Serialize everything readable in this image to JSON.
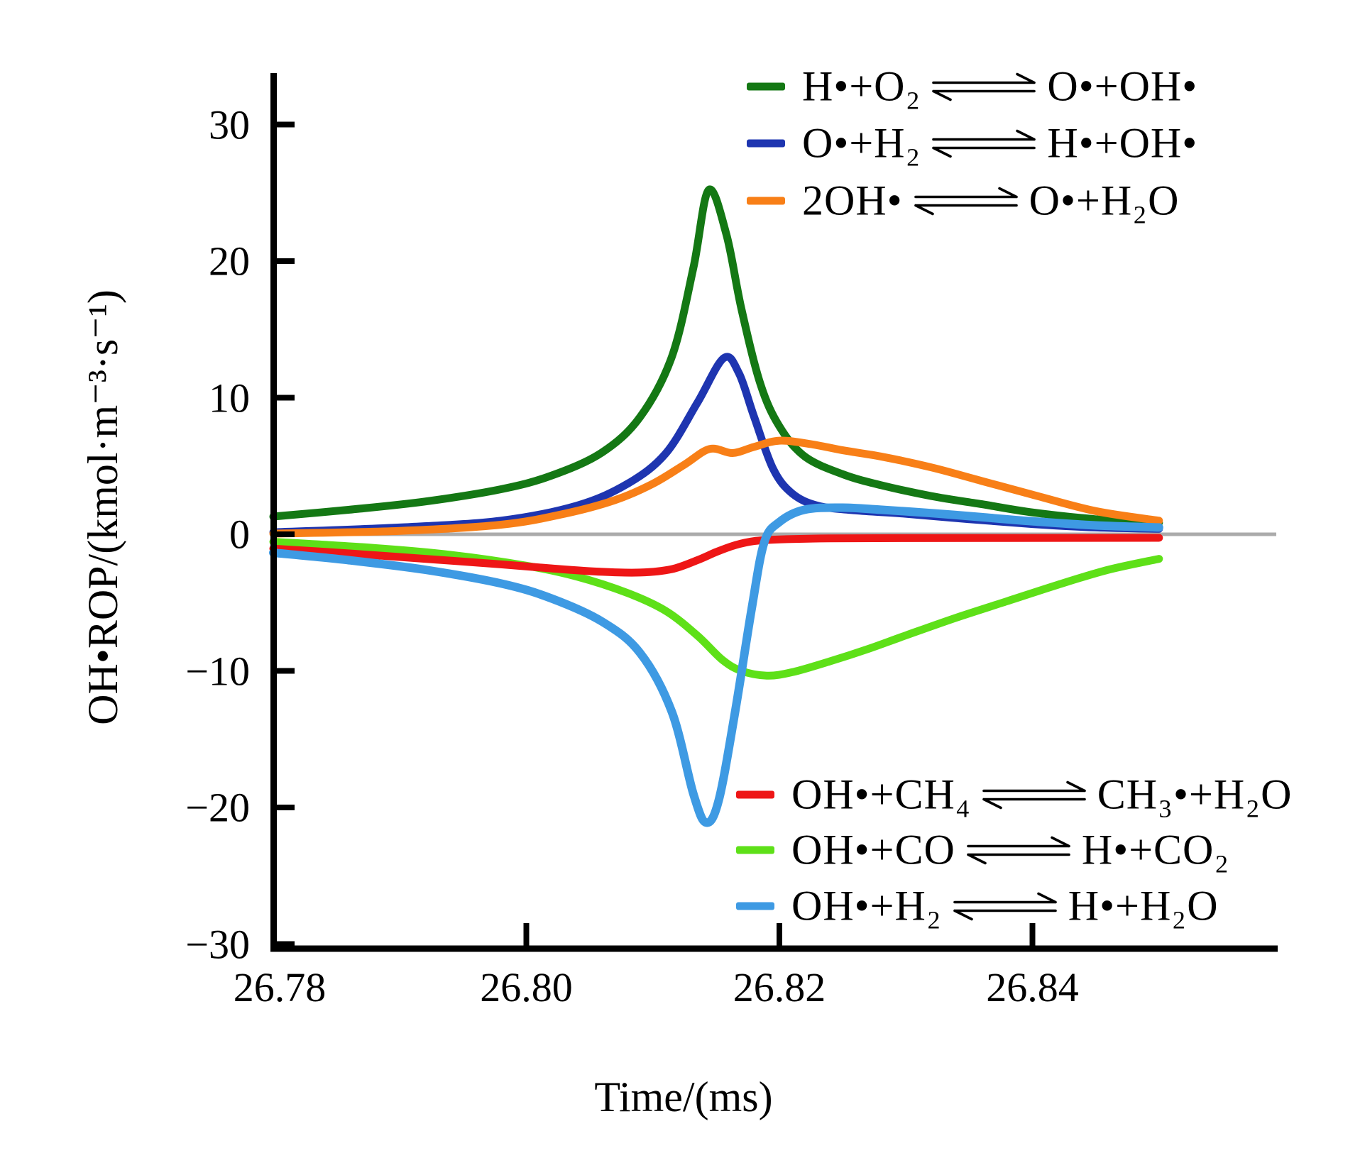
{
  "figure": {
    "background": "#ffffff",
    "axis_color": "#000000",
    "zero_line_color": "#ababab"
  },
  "axes": {
    "x": {
      "title": "Time/(ms)"
    },
    "y": {
      "title": "OH•ROP/(kmol·m⁻³·s⁻¹)"
    }
  },
  "legend_top": [
    {
      "color": "#147814",
      "lhs": "H•+O₂",
      "rhs": "O•+OH•"
    },
    {
      "color": "#1e35b0",
      "lhs": "O•+H₂",
      "rhs": "H•+OH•"
    },
    {
      "color": "#f87f17",
      "lhs": "2OH•",
      "rhs": "O•+H₂O"
    }
  ],
  "legend_bottom": [
    {
      "color": "#ee1616",
      "lhs": "OH•+CH₄",
      "rhs": "CH₃•+H₂O"
    },
    {
      "color": "#5ee018",
      "lhs": "OH•+CO",
      "rhs": "H•+CO₂"
    },
    {
      "color": "#3e9ae3",
      "lhs": "OH•+H₂",
      "rhs": "H•+H₂O"
    }
  ],
  "chart_data": {
    "type": "line",
    "title": "",
    "xlabel": "Time/(ms)",
    "ylabel": "OH•ROP/(kmol·m⁻³·s⁻¹)",
    "xlim": [
      26.78,
      26.8595
    ],
    "ylim": [
      -30.3,
      33.7
    ],
    "grid": false,
    "zero_line": true,
    "legend_position": [
      "upper right inside",
      "lower right inside"
    ],
    "x_ticks": [
      {
        "v": 26.78,
        "label": "26.78",
        "nub": false
      },
      {
        "v": 26.8,
        "label": "26.80",
        "nub": true
      },
      {
        "v": 26.82,
        "label": "26.82",
        "nub": true
      },
      {
        "v": 26.84,
        "label": "26.84",
        "nub": true
      }
    ],
    "y_ticks": [
      {
        "v": 30,
        "label": "30"
      },
      {
        "v": 20,
        "label": "20"
      },
      {
        "v": 10,
        "label": "10"
      },
      {
        "v": 0,
        "label": "0"
      },
      {
        "v": -10,
        "label": "−10"
      },
      {
        "v": -20,
        "label": "−20"
      },
      {
        "v": -30,
        "label": "−30"
      }
    ],
    "series": [
      {
        "id": "h-o2",
        "name": "H•+O₂ ⇌ O•+OH•",
        "color": "#147814",
        "width": 11,
        "points": [
          [
            26.78,
            1.3
          ],
          [
            26.786,
            1.8
          ],
          [
            26.792,
            2.4
          ],
          [
            26.798,
            3.3
          ],
          [
            26.802,
            4.3
          ],
          [
            26.806,
            6.0
          ],
          [
            26.809,
            8.6
          ],
          [
            26.8115,
            13.0
          ],
          [
            26.8132,
            19.5
          ],
          [
            26.8144,
            25.2
          ],
          [
            26.8158,
            22.0
          ],
          [
            26.817,
            16.5
          ],
          [
            26.8185,
            11.0
          ],
          [
            26.82,
            7.9
          ],
          [
            26.822,
            5.7
          ],
          [
            26.825,
            4.4
          ],
          [
            26.828,
            3.6
          ],
          [
            26.832,
            2.8
          ],
          [
            26.836,
            2.2
          ],
          [
            26.84,
            1.6
          ],
          [
            26.845,
            1.1
          ],
          [
            26.85,
            0.85
          ]
        ]
      },
      {
        "id": "o-h2",
        "name": "O•+H₂ ⇌ H•+OH•",
        "color": "#1e35b0",
        "width": 11,
        "points": [
          [
            26.78,
            0.15
          ],
          [
            26.79,
            0.5
          ],
          [
            26.798,
            1.0
          ],
          [
            26.804,
            2.1
          ],
          [
            26.808,
            3.7
          ],
          [
            26.811,
            5.9
          ],
          [
            26.8135,
            9.6
          ],
          [
            26.8156,
            12.9
          ],
          [
            26.8168,
            11.8
          ],
          [
            26.818,
            8.6
          ],
          [
            26.8195,
            4.8
          ],
          [
            26.821,
            3.0
          ],
          [
            26.823,
            2.1
          ],
          [
            26.826,
            1.75
          ],
          [
            26.83,
            1.5
          ],
          [
            26.835,
            1.1
          ],
          [
            26.84,
            0.75
          ],
          [
            26.845,
            0.5
          ],
          [
            26.85,
            0.4
          ]
        ]
      },
      {
        "id": "2oh",
        "name": "2OH• ⇌ O•+H₂O",
        "color": "#f87f17",
        "width": 11,
        "points": [
          [
            26.78,
            0.05
          ],
          [
            26.79,
            0.25
          ],
          [
            26.798,
            0.7
          ],
          [
            26.803,
            1.5
          ],
          [
            26.807,
            2.5
          ],
          [
            26.81,
            3.7
          ],
          [
            26.8125,
            5.1
          ],
          [
            26.8145,
            6.25
          ],
          [
            26.8163,
            5.95
          ],
          [
            26.818,
            6.4
          ],
          [
            26.82,
            6.85
          ],
          [
            26.8225,
            6.6
          ],
          [
            26.825,
            6.15
          ],
          [
            26.828,
            5.7
          ],
          [
            26.832,
            4.9
          ],
          [
            26.836,
            3.9
          ],
          [
            26.84,
            2.9
          ],
          [
            26.845,
            1.7
          ],
          [
            26.85,
            1.0
          ]
        ]
      },
      {
        "id": "oh-co",
        "name": "OH•+CO ⇌ H•+CO₂",
        "color": "#5ee018",
        "width": 11,
        "points": [
          [
            26.78,
            -0.55
          ],
          [
            26.788,
            -1.0
          ],
          [
            26.794,
            -1.5
          ],
          [
            26.8,
            -2.3
          ],
          [
            26.804,
            -3.1
          ],
          [
            26.808,
            -4.3
          ],
          [
            26.811,
            -5.6
          ],
          [
            26.8135,
            -7.4
          ],
          [
            26.8155,
            -9.2
          ],
          [
            26.817,
            -10.0
          ],
          [
            26.819,
            -10.35
          ],
          [
            26.821,
            -10.1
          ],
          [
            26.824,
            -9.3
          ],
          [
            26.827,
            -8.4
          ],
          [
            26.83,
            -7.4
          ],
          [
            26.834,
            -6.1
          ],
          [
            26.838,
            -4.9
          ],
          [
            26.842,
            -3.7
          ],
          [
            26.846,
            -2.6
          ],
          [
            26.85,
            -1.8
          ]
        ]
      },
      {
        "id": "oh-ch4",
        "name": "OH•+CH₄ ⇌ CH₃•+H₂O",
        "color": "#ee1616",
        "width": 11,
        "points": [
          [
            26.78,
            -1.05
          ],
          [
            26.786,
            -1.4
          ],
          [
            26.792,
            -1.8
          ],
          [
            26.798,
            -2.2
          ],
          [
            26.802,
            -2.5
          ],
          [
            26.806,
            -2.75
          ],
          [
            26.809,
            -2.8
          ],
          [
            26.8115,
            -2.55
          ],
          [
            26.8135,
            -1.9
          ],
          [
            26.815,
            -1.3
          ],
          [
            26.8165,
            -0.8
          ],
          [
            26.818,
            -0.5
          ],
          [
            26.82,
            -0.38
          ],
          [
            26.824,
            -0.3
          ],
          [
            26.83,
            -0.28
          ],
          [
            26.838,
            -0.27
          ],
          [
            26.85,
            -0.26
          ]
        ]
      },
      {
        "id": "oh-h2",
        "name": "OH•+H₂ ⇌ H•+H₂O",
        "color": "#3e9ae3",
        "width": 12,
        "points": [
          [
            26.78,
            -1.35
          ],
          [
            26.786,
            -1.9
          ],
          [
            26.792,
            -2.6
          ],
          [
            26.798,
            -3.6
          ],
          [
            26.802,
            -4.7
          ],
          [
            26.806,
            -6.4
          ],
          [
            26.809,
            -8.7
          ],
          [
            26.8115,
            -13.0
          ],
          [
            26.8132,
            -19.0
          ],
          [
            26.8142,
            -21.1
          ],
          [
            26.8152,
            -19.5
          ],
          [
            26.8165,
            -13.0
          ],
          [
            26.8178,
            -5.5
          ],
          [
            26.8188,
            -0.6
          ],
          [
            26.82,
            0.9
          ],
          [
            26.822,
            1.8
          ],
          [
            26.825,
            1.95
          ],
          [
            26.828,
            1.8
          ],
          [
            26.832,
            1.55
          ],
          [
            26.836,
            1.25
          ],
          [
            26.84,
            0.95
          ],
          [
            26.845,
            0.65
          ],
          [
            26.85,
            0.5
          ]
        ]
      }
    ]
  }
}
